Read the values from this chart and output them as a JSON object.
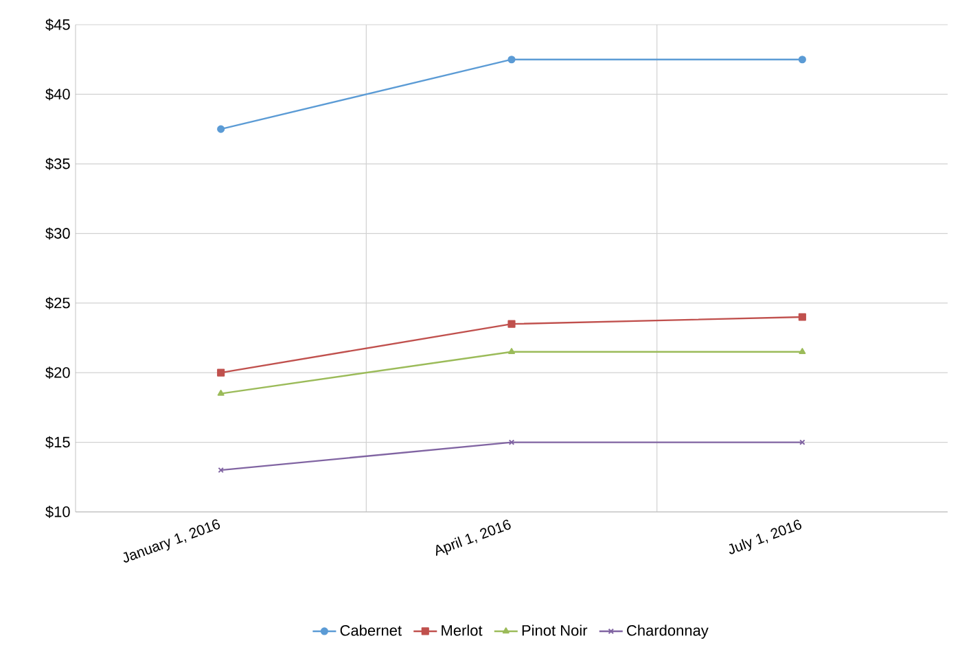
{
  "chart_data": {
    "type": "line",
    "categories": [
      "January 1, 2016",
      "April 1, 2016",
      "July 1, 2016"
    ],
    "series": [
      {
        "name": "Cabernet",
        "color": "#5b9bd5",
        "marker": "circle",
        "values": [
          37.5,
          42.5,
          42.5
        ]
      },
      {
        "name": "Merlot",
        "color": "#c0504d",
        "marker": "square",
        "values": [
          20,
          23.5,
          24
        ]
      },
      {
        "name": "Pinot Noir",
        "color": "#9bbb59",
        "marker": "triangle",
        "values": [
          18.5,
          21.5,
          21.5
        ]
      },
      {
        "name": "Chardonnay",
        "color": "#8064a2",
        "marker": "cross",
        "values": [
          13,
          15,
          15
        ]
      }
    ],
    "ylim": [
      10,
      45
    ],
    "yticks": [
      {
        "value": 10,
        "label": "$10"
      },
      {
        "value": 15,
        "label": "$15"
      },
      {
        "value": 20,
        "label": "$20"
      },
      {
        "value": 25,
        "label": "$25"
      },
      {
        "value": 30,
        "label": "$30"
      },
      {
        "value": 35,
        "label": "$35"
      },
      {
        "value": 40,
        "label": "$40"
      },
      {
        "value": 45,
        "label": "$45"
      }
    ],
    "grid": true,
    "legend": "bottom"
  }
}
